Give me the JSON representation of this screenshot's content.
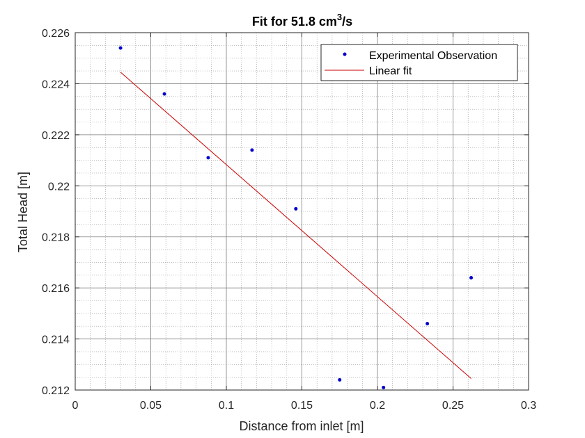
{
  "chart_data": {
    "type": "scatter",
    "title_base": "Fit for 51.8 cm",
    "title_sup": "3",
    "title_tail": "/s",
    "xlabel": "Distance from inlet [m]",
    "ylabel": "Total Head [m]",
    "xlim": [
      0,
      0.3
    ],
    "ylim": [
      0.212,
      0.226
    ],
    "xticks": [
      "0",
      "0.05",
      "0.1",
      "0.15",
      "0.2",
      "0.25",
      "0.3"
    ],
    "xtick_values": [
      0,
      0.05,
      0.1,
      0.15,
      0.2,
      0.25,
      0.3
    ],
    "yticks": [
      "0.212",
      "0.214",
      "0.216",
      "0.218",
      "0.22",
      "0.222",
      "0.224",
      "0.226"
    ],
    "ytick_values": [
      0.212,
      0.214,
      0.216,
      0.218,
      0.22,
      0.222,
      0.224,
      0.226
    ],
    "grid": true,
    "minor_grid": true,
    "legend_position": "top-right",
    "series": [
      {
        "name": "Experimental Observation",
        "kind": "points",
        "color": "#0000cc",
        "x": [
          0.03,
          0.059,
          0.088,
          0.117,
          0.146,
          0.175,
          0.204,
          0.233,
          0.262
        ],
        "y": [
          0.2254,
          0.2236,
          0.2211,
          0.2214,
          0.2191,
          0.2124,
          0.2121,
          0.2146,
          0.2164
        ]
      },
      {
        "name": "Linear fit",
        "kind": "line",
        "color": "#cc0000",
        "x": [
          0.03,
          0.262
        ],
        "y": [
          0.22445,
          0.21245
        ]
      }
    ]
  }
}
